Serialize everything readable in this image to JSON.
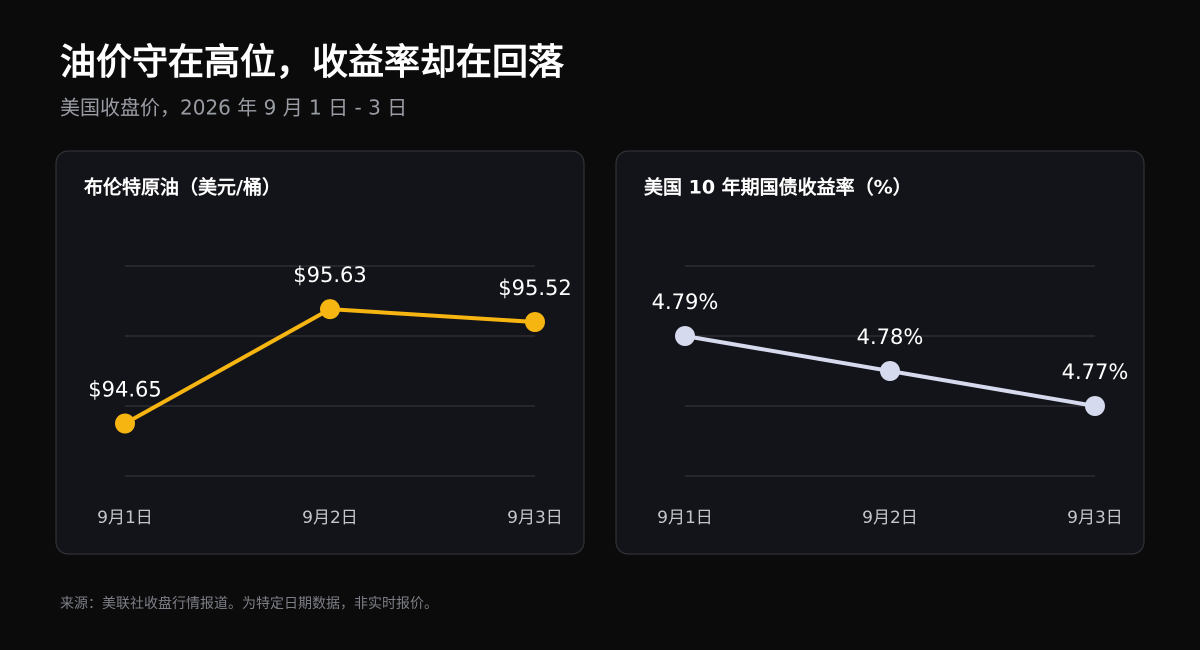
{
  "title": "油价守在高位，收益率却在回落",
  "subtitle": "美国收盘价，2026 年 9 月 1 日 - 3 日",
  "source": "来源：美联社收盘行情报道。为特定日期数据，非实时报价。",
  "chart_data": [
    {
      "type": "line",
      "title": "布伦特原油（美元/桶）",
      "categories": [
        "9月1日",
        "9月2日",
        "9月3日"
      ],
      "values": [
        94.65,
        95.63,
        95.52
      ],
      "value_labels": [
        "$94.65",
        "$95.63",
        "$95.52"
      ],
      "color": "#f7b512",
      "ylim": [
        94.2,
        96.0
      ],
      "yticks": [
        94.2,
        94.8,
        95.4,
        96.0
      ],
      "grid": true
    },
    {
      "type": "line",
      "title": "美国 10 年期国债收益率（%）",
      "categories": [
        "9月1日",
        "9月2日",
        "9月3日"
      ],
      "values": [
        4.79,
        4.78,
        4.77
      ],
      "value_labels": [
        "4.79%",
        "4.78%",
        "4.77%"
      ],
      "color": "#d6daee",
      "ylim": [
        4.75,
        4.81
      ],
      "yticks": [
        4.75,
        4.77,
        4.79,
        4.81
      ],
      "grid": true
    }
  ]
}
